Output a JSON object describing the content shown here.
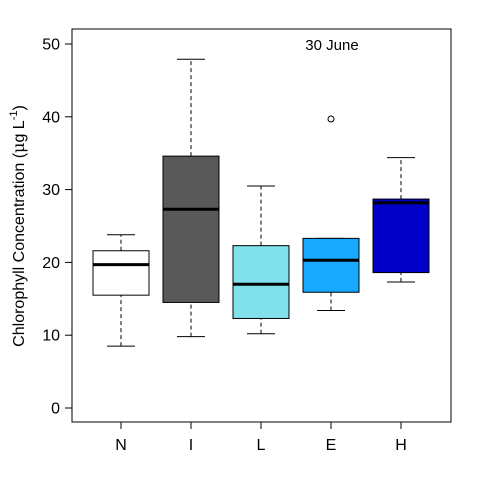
{
  "chart_data": {
    "type": "boxplot",
    "annotation": "30 June",
    "ylabel": {
      "prefix": "Chlorophyll Concentration (",
      "mu": "μ",
      "unit": "g L",
      "exponent": "-1",
      "suffix": ")"
    },
    "ylim": [
      -2.5,
      52
    ],
    "yticks": [
      0,
      10,
      20,
      30,
      40,
      50
    ],
    "grid": false,
    "categories": [
      "N",
      "I",
      "L",
      "E",
      "H"
    ],
    "boxes": [
      {
        "name": "N",
        "whisker_low": 8.5,
        "q1": 15.5,
        "median": 19.7,
        "q3": 21.6,
        "whisker_high": 23.8,
        "outliers": [],
        "color": "#ffffff"
      },
      {
        "name": "I",
        "whisker_low": 9.8,
        "q1": 14.5,
        "median": 27.3,
        "q3": 34.6,
        "whisker_high": 47.9,
        "outliers": [],
        "color": "#595959"
      },
      {
        "name": "L",
        "whisker_low": 10.2,
        "q1": 12.3,
        "median": 17.0,
        "q3": 22.3,
        "whisker_high": 30.5,
        "outliers": [],
        "color": "#80e1eb"
      },
      {
        "name": "E",
        "whisker_low": 13.4,
        "q1": 15.9,
        "median": 20.3,
        "q3": 23.3,
        "whisker_high": 23.3,
        "outliers": [
          39.7
        ],
        "color": "#17a9ff"
      },
      {
        "name": "H",
        "whisker_low": 17.3,
        "q1": 18.6,
        "median": 28.2,
        "q3": 28.7,
        "whisker_high": 34.4,
        "outliers": [],
        "color": "#0000c8"
      }
    ]
  }
}
